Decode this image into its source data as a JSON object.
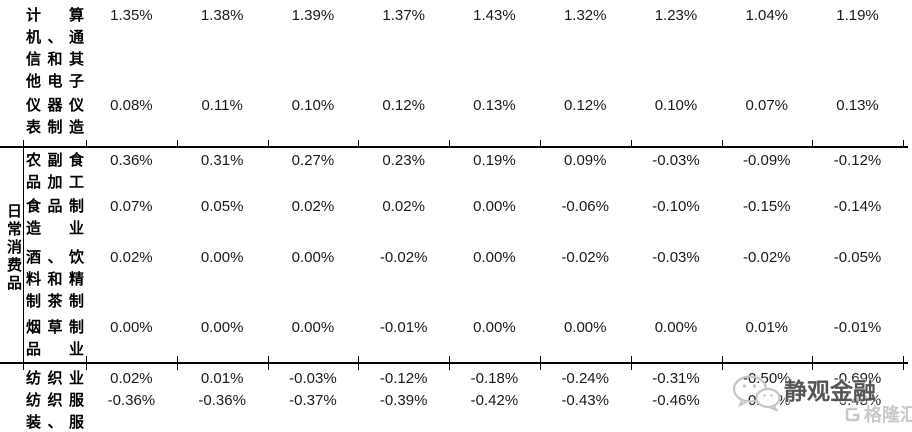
{
  "table": {
    "sector_label": "日常消费品",
    "rows": [
      {
        "name": "计算机、通信和其他电子设备制造业",
        "values": [
          "1.35%",
          "1.38%",
          "1.39%",
          "1.37%",
          "1.43%",
          "1.32%",
          "1.23%",
          "1.04%",
          "1.19%"
        ]
      },
      {
        "name": "仪器仪表制造业",
        "values": [
          "0.08%",
          "0.11%",
          "0.10%",
          "0.12%",
          "0.13%",
          "0.12%",
          "0.10%",
          "0.07%",
          "0.13%"
        ]
      },
      {
        "name": "农副食品加工业",
        "values": [
          "0.36%",
          "0.31%",
          "0.27%",
          "0.23%",
          "0.19%",
          "0.09%",
          "-0.03%",
          "-0.09%",
          "-0.12%"
        ]
      },
      {
        "name": "食品制造业",
        "values": [
          "0.07%",
          "0.05%",
          "0.02%",
          "0.02%",
          "0.00%",
          "-0.06%",
          "-0.10%",
          "-0.15%",
          "-0.14%"
        ]
      },
      {
        "name": "酒、饮料和精制茶制造业",
        "values": [
          "0.02%",
          "0.00%",
          "0.00%",
          "-0.02%",
          "0.00%",
          "-0.02%",
          "-0.03%",
          "-0.02%",
          "-0.05%"
        ]
      },
      {
        "name": "烟草制品业",
        "values": [
          "0.00%",
          "0.00%",
          "0.00%",
          "-0.01%",
          "0.00%",
          "0.00%",
          "0.00%",
          "0.01%",
          "-0.01%"
        ]
      },
      {
        "name": "纺织业",
        "values": [
          "0.02%",
          "0.01%",
          "-0.03%",
          "-0.12%",
          "-0.18%",
          "-0.24%",
          "-0.31%",
          "-0.50%",
          "-0.69%"
        ]
      },
      {
        "name": "纺织服装、服饰",
        "values": [
          "-0.36%",
          "-0.36%",
          "-0.37%",
          "-0.39%",
          "-0.42%",
          "-0.43%",
          "-0.46%",
          "-0.47%",
          "-0.48%"
        ]
      }
    ]
  },
  "watermark": {
    "brand_text": "静观金融",
    "logo_text": "格隆汇",
    "brand_color": "#3e3e3e",
    "logo_color": "#c9c9c9",
    "wechat_icon_color": "#c6c6c6"
  }
}
